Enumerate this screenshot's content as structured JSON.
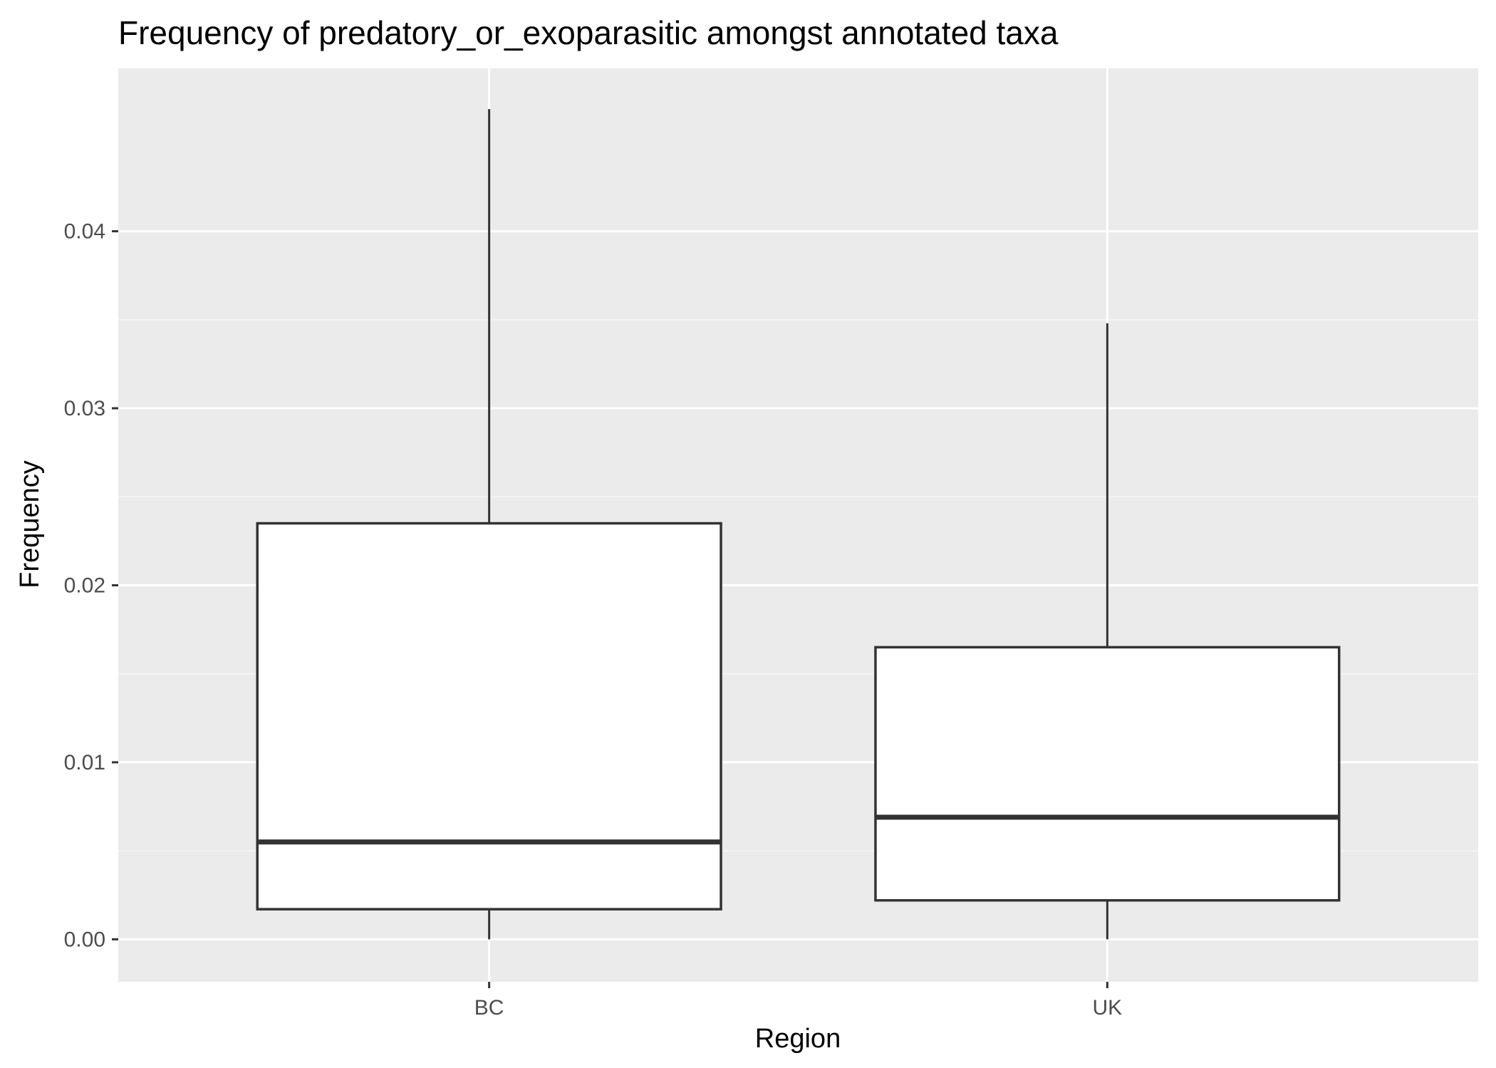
{
  "chart_data": {
    "type": "boxplot",
    "title": "Frequency of predatory_or_exoparasitic amongst annotated taxa",
    "xlabel": "Region",
    "ylabel": "Frequency",
    "categories": [
      "BC",
      "UK"
    ],
    "boxes": [
      {
        "category": "BC",
        "min": 0.0,
        "q1": 0.0017,
        "median": 0.0055,
        "q3": 0.0235,
        "max": 0.0469
      },
      {
        "category": "UK",
        "min": 0.0,
        "q1": 0.0022,
        "median": 0.0069,
        "q3": 0.0165,
        "max": 0.0348
      }
    ],
    "y_ticks": [
      {
        "value": 0.0,
        "label": "0.00"
      },
      {
        "value": 0.01,
        "label": "0.01"
      },
      {
        "value": 0.02,
        "label": "0.02"
      },
      {
        "value": 0.03,
        "label": "0.03"
      },
      {
        "value": 0.04,
        "label": "0.04"
      }
    ],
    "ylim": [
      -0.0024,
      0.0492
    ],
    "grid": true,
    "colors": {
      "panel_background": "#ebebeb",
      "grid_major": "#ffffff",
      "grid_minor": "#f5f5f5",
      "box_fill": "#ffffff",
      "box_stroke": "#333333",
      "tick_mark": "#333333"
    }
  }
}
